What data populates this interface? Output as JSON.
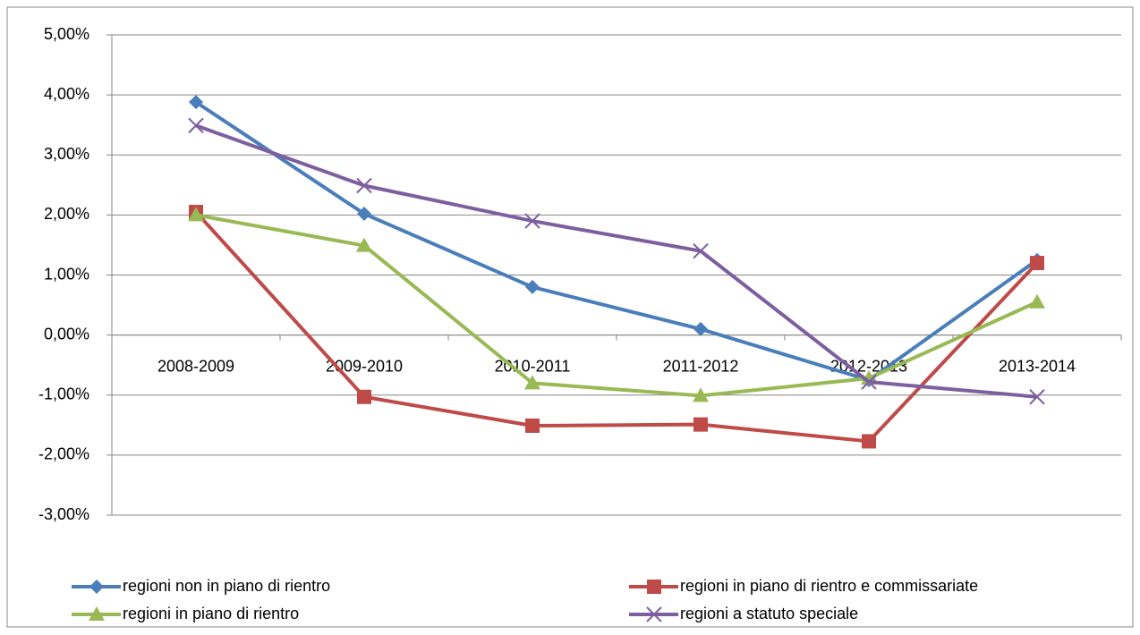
{
  "chart_data": {
    "type": "line",
    "categories": [
      "2008-2009",
      "2009-2010",
      "2010-2011",
      "2011-2012",
      "2012-2013",
      "2013-2014"
    ],
    "series": [
      {
        "name": "regioni non in piano di rientro",
        "color": "#4a7ebb",
        "marker": "diamond",
        "values": [
          3.88,
          2.02,
          0.8,
          0.1,
          -0.75,
          1.25
        ]
      },
      {
        "name": "regioni in piano di rientro e commissariate",
        "color": "#be4b48",
        "marker": "square",
        "values": [
          2.05,
          -1.03,
          -1.51,
          -1.49,
          -1.77,
          1.2
        ]
      },
      {
        "name": "regioni in piano di rientro",
        "color": "#98b954",
        "marker": "triangle",
        "values": [
          2.0,
          1.49,
          -0.8,
          -1.01,
          -0.72,
          0.55
        ]
      },
      {
        "name": "regioni a statuto speciale",
        "color": "#7d5fa0",
        "marker": "x",
        "values": [
          3.49,
          2.49,
          1.9,
          1.4,
          -0.78,
          -1.03
        ]
      }
    ],
    "ylim": [
      -3,
      5
    ],
    "yticks": [
      {
        "value": -3,
        "label": "-3,00%"
      },
      {
        "value": -2,
        "label": "-2,00%"
      },
      {
        "value": -1,
        "label": "-1,00%"
      },
      {
        "value": 0,
        "label": "0,00%"
      },
      {
        "value": 1,
        "label": "1,00%"
      },
      {
        "value": 2,
        "label": "2,00%"
      },
      {
        "value": 3,
        "label": "3,00%"
      },
      {
        "value": 4,
        "label": "4,00%"
      },
      {
        "value": 5,
        "label": "5,00%"
      }
    ],
    "grid": true,
    "legend": "bottom"
  }
}
